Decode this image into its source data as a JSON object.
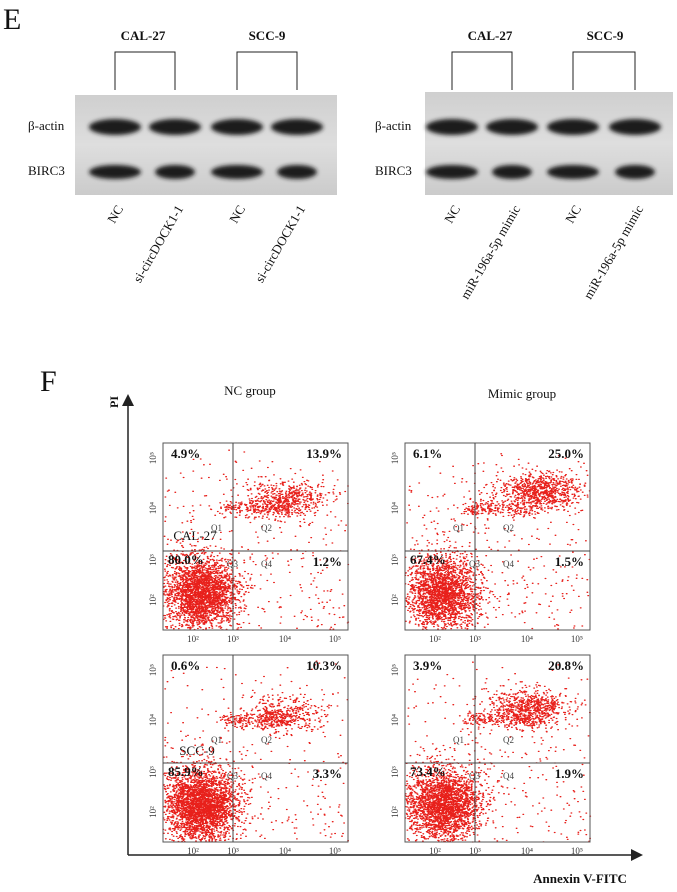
{
  "panel_e": {
    "label": "E",
    "blots": [
      {
        "groups": [
          "CAL-27",
          "SCC-9"
        ],
        "rows": [
          "β-actin",
          "BIRC3"
        ],
        "lanes": [
          "NC",
          "si-circDOCK1-1",
          "NC",
          "si-circDOCK1-1"
        ]
      },
      {
        "groups": [
          "CAL-27",
          "SCC-9"
        ],
        "rows": [
          "β-actin",
          "BIRC3"
        ],
        "lanes": [
          "NC",
          "miR-196a-5p mimic",
          "NC",
          "miR-196a-5p mimic"
        ]
      }
    ]
  },
  "panel_f": {
    "label": "F",
    "y_axis": "PI",
    "x_axis": "Annexin V-FITC",
    "columns": [
      "NC group",
      "Mimic group"
    ],
    "rows": [
      "CAL-27",
      "SCC-9"
    ],
    "axis_ticks": [
      "10²",
      "10³",
      "10⁴",
      "10⁵"
    ],
    "quadrants": [
      "Q1",
      "Q2",
      "Q3",
      "Q4"
    ],
    "plots": [
      {
        "percentages": [
          "4.9%",
          "13.9%",
          "80.0%",
          "1.2%"
        ]
      },
      {
        "percentages": [
          "6.1%",
          "25.0%",
          "67.4%",
          "1.5%"
        ]
      },
      {
        "percentages": [
          "0.6%",
          "10.3%",
          "85.9%",
          "3.3%"
        ]
      },
      {
        "percentages": [
          "3.9%",
          "20.8%",
          "73.4%",
          "1.9%"
        ]
      }
    ]
  }
}
